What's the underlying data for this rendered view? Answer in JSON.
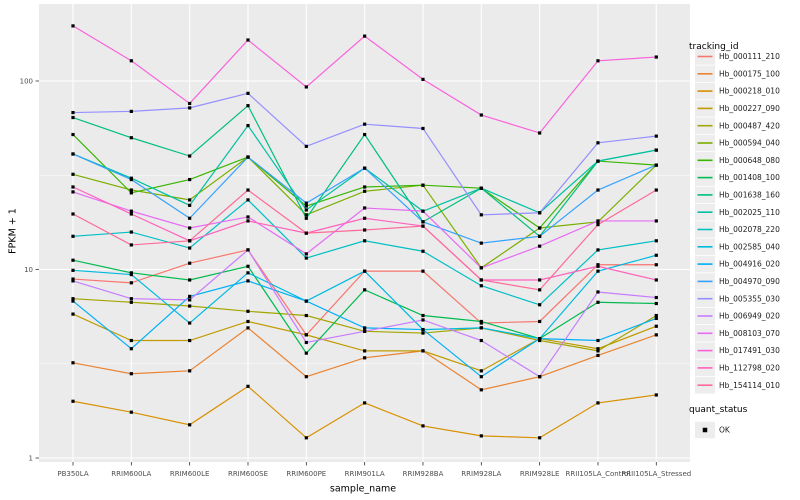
{
  "chart_data": {
    "type": "line",
    "title": "",
    "xlabel": "sample_name",
    "ylabel": "FPKM + 1",
    "yscale": "log10",
    "ylim": [
      0.95,
      256
    ],
    "yticks": [
      1,
      10,
      100
    ],
    "ytick_labels": [
      "1",
      "10",
      "100"
    ],
    "grid": "on",
    "legend_position": "right",
    "legend_title": "tracking_id",
    "legend2": {
      "title": "quant_status",
      "items": [
        {
          "label": "OK",
          "marker": "black-square"
        }
      ]
    },
    "point_marker": "black-square",
    "categories": [
      "PB350LA",
      "RRIM600LA",
      "RRIM600LE",
      "RRIM600SE",
      "RRIM600PE",
      "RRIM901LA",
      "RRIM928BA",
      "RRIM928LA",
      "RRIM928LE",
      "RRII105LA_Control",
      "RRII105LA_Stressed"
    ],
    "series": [
      {
        "name": "Hb_000111_210",
        "color": "#F8766D",
        "values": [
          8.9,
          8.5,
          10.8,
          12.7,
          4.5,
          9.8,
          9.8,
          5.2,
          5.3,
          10.6,
          10.6
        ]
      },
      {
        "name": "Hb_000175_100",
        "color": "#EA8331",
        "values": [
          3.2,
          2.8,
          2.9,
          4.9,
          2.7,
          3.4,
          3.7,
          2.3,
          2.7,
          3.5,
          4.5
        ]
      },
      {
        "name": "Hb_000218_010",
        "color": "#D89000",
        "values": [
          2.0,
          1.75,
          1.5,
          2.4,
          1.28,
          1.96,
          1.48,
          1.31,
          1.28,
          1.96,
          2.16
        ]
      },
      {
        "name": "Hb_000227_090",
        "color": "#C09B00",
        "values": [
          5.8,
          4.2,
          4.2,
          5.3,
          4.5,
          3.7,
          3.7,
          2.9,
          4.3,
          3.8,
          5.0
        ]
      },
      {
        "name": "Hb_000487_420",
        "color": "#A3A500",
        "values": [
          7.0,
          6.7,
          6.4,
          6.0,
          5.7,
          4.7,
          4.6,
          4.9,
          4.2,
          3.7,
          5.7
        ]
      },
      {
        "name": "Hb_000594_040",
        "color": "#7CAE00",
        "values": [
          32,
          26.4,
          23.4,
          39.5,
          19.5,
          26,
          28,
          10.2,
          16.6,
          17.9,
          35.8
        ]
      },
      {
        "name": "Hb_000648_080",
        "color": "#39B600",
        "values": [
          52,
          25.5,
          30,
          39.5,
          21.7,
          27.4,
          28,
          27,
          16.6,
          37.6,
          35.8
        ]
      },
      {
        "name": "Hb_001408_100",
        "color": "#00BB4E",
        "values": [
          11.2,
          9.6,
          8.8,
          10.4,
          3.6,
          7.8,
          5.7,
          5.3,
          4.3,
          6.7,
          6.6
        ]
      },
      {
        "name": "Hb_001638_160",
        "color": "#00BF7D",
        "values": [
          64,
          50,
          40,
          74,
          18.7,
          52,
          17.9,
          27,
          15,
          37.6,
          43
        ]
      },
      {
        "name": "Hb_002025_110",
        "color": "#00C1A3",
        "values": [
          41,
          30.5,
          21.9,
          58,
          20.7,
          34.5,
          20.4,
          27,
          20,
          37.6,
          43
        ]
      },
      {
        "name": "Hb_002078_220",
        "color": "#00BFC4",
        "values": [
          15,
          15.8,
          13,
          23.4,
          11.5,
          14.2,
          12.5,
          8.2,
          6.5,
          12.7,
          14.2
        ]
      },
      {
        "name": "Hb_002585_040",
        "color": "#00BAE0",
        "values": [
          9.9,
          9.4,
          5.2,
          9.6,
          6.8,
          9.8,
          4.8,
          4.9,
          4.3,
          9.8,
          11.9
        ]
      },
      {
        "name": "Hb_004916_020",
        "color": "#00B0F6",
        "values": [
          6.8,
          3.8,
          7.2,
          8.7,
          6.8,
          4.9,
          4.8,
          2.7,
          4.3,
          4.2,
          5.5
        ]
      },
      {
        "name": "Hb_004970_090",
        "color": "#35A2FF",
        "values": [
          41,
          30,
          18.7,
          39.5,
          22.5,
          34.5,
          17.9,
          13.8,
          15,
          26.4,
          35.8
        ]
      },
      {
        "name": "Hb_005355_030",
        "color": "#9590FF",
        "values": [
          68,
          69,
          72,
          86,
          45,
          59,
          56,
          19.5,
          20,
          47,
          51
        ]
      },
      {
        "name": "Hb_006949_020",
        "color": "#C77CFF",
        "values": [
          8.7,
          7.0,
          6.9,
          12.7,
          4.1,
          4.7,
          5.4,
          4.2,
          2.7,
          7.6,
          7.1
        ]
      },
      {
        "name": "Hb_008103_070",
        "color": "#E76BF3",
        "values": [
          25.8,
          20.4,
          16.6,
          19,
          12.1,
          21.2,
          20.4,
          10.2,
          13.3,
          18.1,
          18.1
        ]
      },
      {
        "name": "Hb_017491_030",
        "color": "#FA62DB",
        "values": [
          196,
          128,
          76,
          165,
          93,
          173,
          102,
          66,
          53,
          128,
          134
        ]
      },
      {
        "name": "Hb_112798_020",
        "color": "#FF62BC",
        "values": [
          27.4,
          19.7,
          14.2,
          18.1,
          15.6,
          18.7,
          17,
          8.8,
          8.8,
          10.4,
          8.8
        ]
      },
      {
        "name": "Hb_154114_010",
        "color": "#FF6A98",
        "values": [
          19.7,
          13.5,
          14.2,
          26.4,
          15.6,
          16.2,
          17,
          8.8,
          7.8,
          17.3,
          26.4
        ]
      }
    ],
    "colors": {
      "panel_bg": "#EBEBEB",
      "grid": "#FFFFFF",
      "tick_text": "#4D4D4D",
      "tick_mark": "#333333",
      "axis_title": "#000000",
      "point": "#000000",
      "legend_key_bg": "#EDEDED",
      "legend_text": "#1A1A1A"
    }
  }
}
